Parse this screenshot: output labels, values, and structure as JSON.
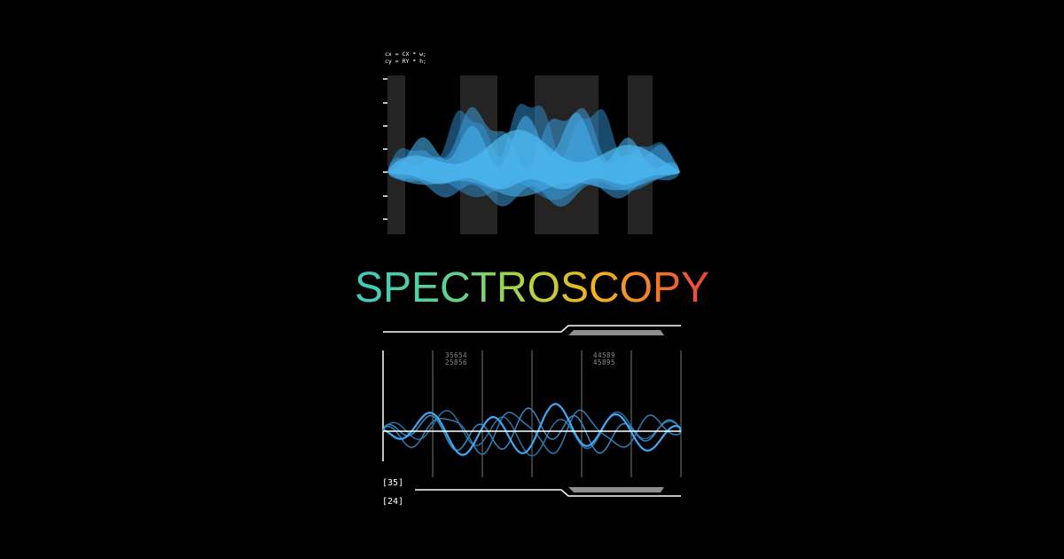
{
  "code_lines": [
    "cx = CX * w;",
    "cy = RY * h;"
  ],
  "title": "SPECTROSCOPY",
  "title_gradient": [
    "#3ec9c2",
    "#5fd38a",
    "#b7d33b",
    "#f2b21e",
    "#f27b2a",
    "#e8423c"
  ],
  "readouts": {
    "left": [
      "35654",
      "25856"
    ],
    "right": [
      "44589",
      "45895"
    ]
  },
  "brackets": [
    "[35]",
    "[24]"
  ],
  "colors": {
    "background": "#000000",
    "wave_primary": "#3fa9f5",
    "wave_dark": "#2b7fb8",
    "panel_band": "#242424",
    "bar_fill": "#8e8e8e"
  }
}
